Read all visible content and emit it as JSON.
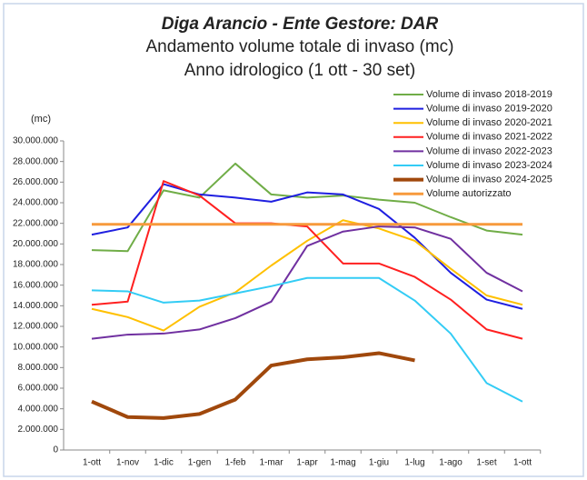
{
  "chart_data": {
    "type": "line",
    "title": "Diga Arancio - Ente Gestore: DAR",
    "subtitle": [
      "Andamento volume totale di invaso (mc)",
      "Anno idrologico (1 ott - 30 set)"
    ],
    "y_axis_label": "(mc)",
    "categories": [
      "1-ott",
      "1-nov",
      "1-dic",
      "1-gen",
      "1-feb",
      "1-mar",
      "1-apr",
      "1-mag",
      "1-giu",
      "1-lug",
      "1-ago",
      "1-set",
      "1-ott"
    ],
    "ylim": [
      0,
      30000000
    ],
    "yticks": [
      0,
      {
        "value": 2000000,
        "label": "2.000.000"
      },
      {
        "value": 4000000,
        "label": "4.000.000"
      },
      {
        "value": 6000000,
        "label": "6.000.000"
      },
      {
        "value": 8000000,
        "label": "8.000.000"
      },
      {
        "value": 10000000,
        "label": "10.000.000"
      },
      {
        "value": 12000000,
        "label": "12.000.000"
      },
      {
        "value": 14000000,
        "label": "14.000.000"
      },
      {
        "value": 16000000,
        "label": "16.000.000"
      },
      {
        "value": 18000000,
        "label": "18.000.000"
      },
      {
        "value": 20000000,
        "label": "20.000.000"
      },
      {
        "value": 22000000,
        "label": "22.000.000"
      },
      {
        "value": 24000000,
        "label": "24.000.000"
      },
      {
        "value": 26000000,
        "label": "26.000.000"
      },
      {
        "value": 28000000,
        "label": "28.000.000"
      },
      {
        "value": 30000000,
        "label": "30.000.000"
      }
    ],
    "grid": false,
    "legend": "top-right",
    "series": [
      {
        "name": "Volume di invaso 2018-2019",
        "color": "#70ad47",
        "values": [
          19400000,
          19300000,
          25200000,
          24500000,
          27800000,
          24800000,
          24500000,
          24700000,
          24300000,
          24000000,
          22600000,
          21300000,
          20900000
        ]
      },
      {
        "name": "Volume di invaso 2019-2020",
        "color": "#1f1fe0",
        "values": [
          20900000,
          21600000,
          25800000,
          24800000,
          24500000,
          24100000,
          25000000,
          24800000,
          23400000,
          20600000,
          17200000,
          14600000,
          13700000
        ]
      },
      {
        "name": "Volume di invaso 2020-2021",
        "color": "#ffc000",
        "values": [
          13700000,
          12900000,
          11600000,
          13900000,
          15300000,
          17900000,
          20300000,
          22300000,
          21500000,
          20300000,
          17600000,
          15000000,
          14100000
        ]
      },
      {
        "name": "Volume di invaso 2021-2022",
        "color": "#ff2020",
        "values": [
          14100000,
          14400000,
          26100000,
          24700000,
          22000000,
          22000000,
          21700000,
          18100000,
          18100000,
          16800000,
          14600000,
          11700000,
          10800000
        ]
      },
      {
        "name": "Volume di invaso 2022-2023",
        "color": "#7030a0",
        "values": [
          10800000,
          11200000,
          11300000,
          11700000,
          12800000,
          14400000,
          19800000,
          21200000,
          21700000,
          21600000,
          20500000,
          17200000,
          15400000
        ]
      },
      {
        "name": "Volume di invaso 2023-2024",
        "color": "#33ccf5",
        "values": [
          15500000,
          15400000,
          14300000,
          14500000,
          15200000,
          15900000,
          16700000,
          16700000,
          16700000,
          14500000,
          11300000,
          6500000,
          4700000
        ]
      },
      {
        "name": "Volume di invaso 2024-2025",
        "color": "#a0480c",
        "width": 4,
        "values": [
          4700000,
          3200000,
          3100000,
          3500000,
          4900000,
          8200000,
          8800000,
          9000000,
          9400000,
          8700000,
          null,
          null,
          null
        ]
      },
      {
        "name": "Volume autorizzato",
        "color": "#f79a3c",
        "width": 3,
        "values": [
          21900000,
          21900000,
          21900000,
          21900000,
          21900000,
          21900000,
          21900000,
          21900000,
          21900000,
          21900000,
          21900000,
          21900000,
          21900000
        ]
      }
    ]
  }
}
